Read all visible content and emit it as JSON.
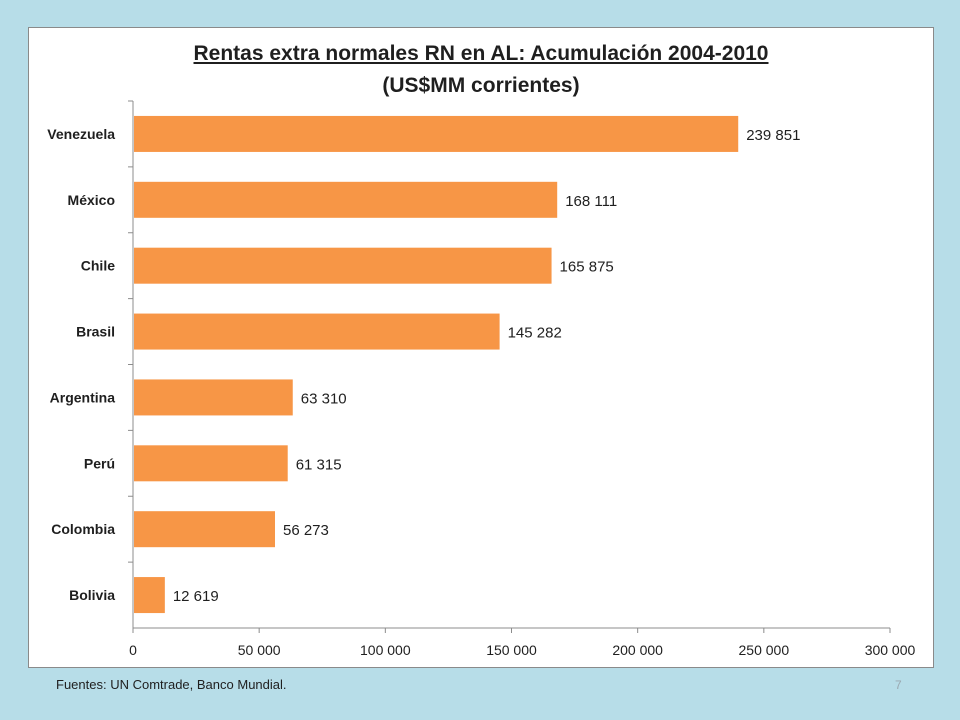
{
  "chart_data": {
    "type": "bar",
    "orientation": "horizontal",
    "title": "Rentas extra normales RN en AL: Acumulación 2004-2010",
    "subtitle": "(US$MM corrientes)",
    "categories": [
      "Venezuela",
      "México",
      "Chile",
      "Brasil",
      "Argentina",
      "Perú",
      "Colombia",
      "Bolivia"
    ],
    "values": [
      239851,
      168111,
      165875,
      145282,
      63310,
      61315,
      56273,
      12619
    ],
    "value_labels": [
      "239 851",
      "168 111",
      "165 875",
      "145 282",
      "63 310",
      "61 315",
      "56 273",
      "12 619"
    ],
    "xlim": [
      0,
      300000
    ],
    "x_ticks": [
      0,
      50000,
      100000,
      150000,
      200000,
      250000,
      300000
    ],
    "x_tick_labels": [
      "0",
      "50 000",
      "100 000",
      "150 000",
      "200 000",
      "250 000",
      "300 000"
    ],
    "bar_color": "#f79646",
    "grid": false,
    "legend": "none"
  },
  "footer": {
    "source": "Fuentes: UN Comtrade, Banco Mundial.",
    "page_number": "7"
  }
}
